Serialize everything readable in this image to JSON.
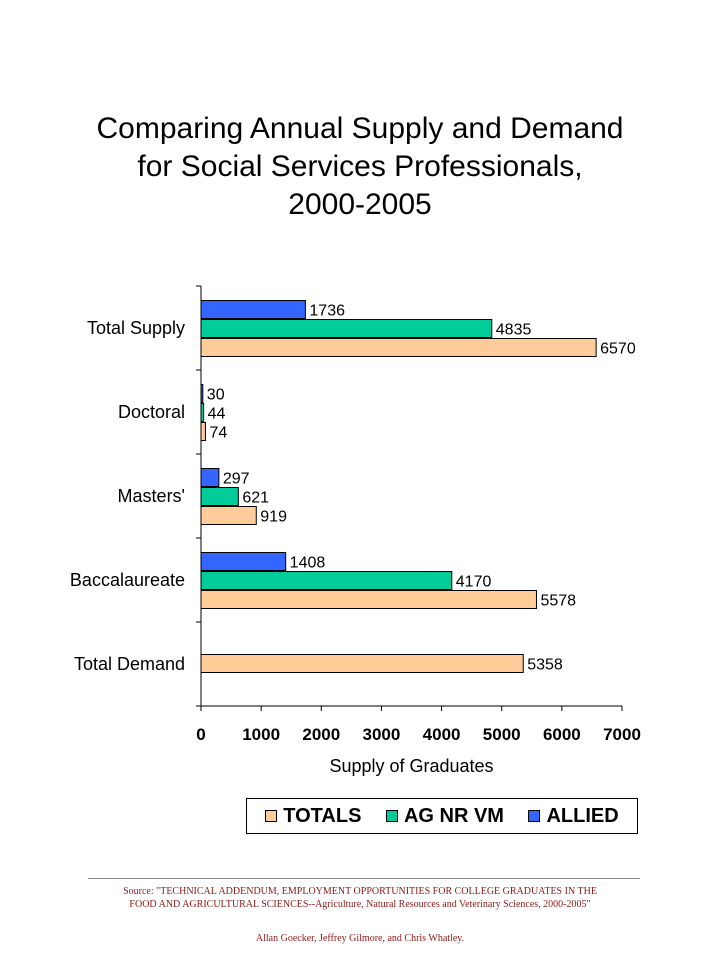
{
  "chart_data": {
    "type": "bar",
    "orientation": "horizontal",
    "title_lines": [
      "Comparing Annual Supply and Demand",
      "for Social Services Professionals,",
      "2000-2005"
    ],
    "xlabel": "Supply of Graduates",
    "ylabel": "",
    "xlim": [
      0,
      7000
    ],
    "xticks": [
      "0",
      "1000",
      "2000",
      "3000",
      "4000",
      "5000",
      "6000",
      "7000"
    ],
    "grid": false,
    "legend_position": "bottom",
    "categories": [
      "Total Supply",
      "Doctoral",
      "Masters'",
      "Baccalaureate",
      "Total Demand"
    ],
    "series": [
      {
        "name": "ALLIED",
        "color": "#3366ff",
        "values": [
          1736,
          30,
          297,
          1408,
          null
        ]
      },
      {
        "name": "AG NR VM",
        "color": "#00cc99",
        "values": [
          4835,
          44,
          621,
          4170,
          null
        ]
      },
      {
        "name": "TOTALS",
        "color": "#ffcc99",
        "values": [
          6570,
          74,
          919,
          5578,
          5358
        ]
      }
    ],
    "legend_order": [
      "TOTALS",
      "AG NR VM",
      "ALLIED"
    ]
  },
  "footer": {
    "source_line1": "Source:  \"TECHNICAL ADDENDUM, EMPLOYMENT OPPORTUNITIES FOR COLLEGE GRADUATES IN THE",
    "source_line2": "FOOD AND AGRICULTURAL SCIENCES--Agriculture,  Natural Resources and Veterinary Sciences, 2000-2005\"",
    "authors": "Allan Goecker, Jeffrey Gilmore, and Chris Whatley."
  }
}
